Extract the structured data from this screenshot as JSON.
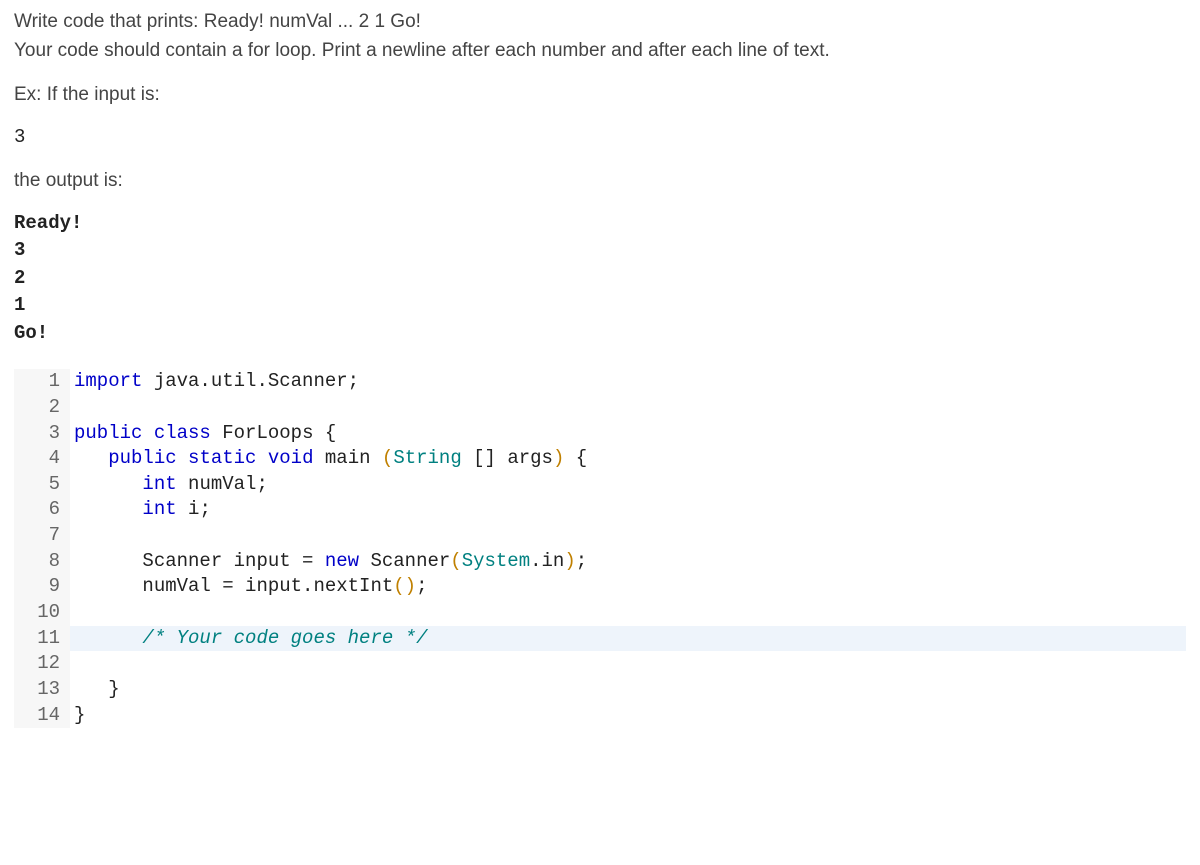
{
  "problem": {
    "line1": "Write code that prints: Ready! numVal ... 2 1 Go!",
    "line2": "Your code should contain a for loop. Print a newline after each number and after each line of text.",
    "exPrompt": "Ex: If the input is:",
    "exInput": "3",
    "outputPrompt": "the output is:",
    "output": {
      "l1": "Ready!",
      "l2": "3",
      "l3": "2",
      "l4": "1",
      "l5": "Go!"
    }
  },
  "code": {
    "language": "java",
    "lineNumbers": [
      "1",
      "2",
      "3",
      "4",
      "5",
      "6",
      "7",
      "8",
      "9",
      "10",
      "11",
      "12",
      "13",
      "14"
    ],
    "tokens": {
      "import": "import",
      "public": "public",
      "class": "class",
      "static": "static",
      "void": "void",
      "int": "int",
      "new": "new",
      "className": "ForLoops",
      "pkg": " java.util.Scanner;",
      "main": " main ",
      "mainArgs": " args",
      "lbrace": " {",
      "rbrace": "}",
      "String": "String",
      "arr": " []",
      "declNumVal": " numVal;",
      "declI": " i;",
      "scannerDecl": "Scanner input = ",
      "scannerNew": " Scanner",
      "system": "System",
      "dotIn": ".in",
      "semiParenClose": ";",
      "assignNumVal": "numVal = input.nextInt",
      "openParen": "(",
      "closeParen": ")",
      "emptyArgs": "()",
      "comment": "/* Your code goes here */",
      "indent1": "   ",
      "indent2": "      ",
      "space": " "
    },
    "colors": {
      "keyword": "#0000c8",
      "type": "#008080",
      "comment": "#008080",
      "paren": "#c08000",
      "gutterBg": "#f7f7f7",
      "highlightBg": "#eef4fb"
    }
  }
}
